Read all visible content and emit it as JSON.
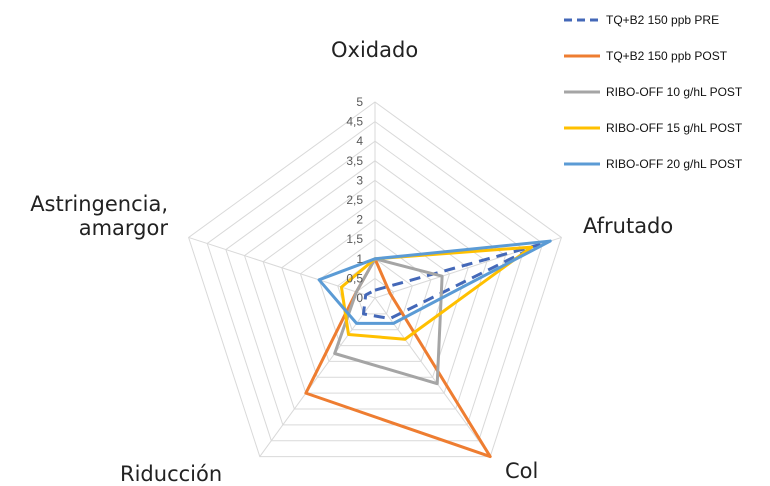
{
  "chart_data": {
    "type": "radar",
    "axes": [
      "Oxidado",
      "Afrutado",
      "Col",
      "Riducción",
      "Astringencia, amargor"
    ],
    "axis_label_lines": [
      [
        "Oxidado"
      ],
      [
        "Afrutado"
      ],
      [
        "Col"
      ],
      [
        "Riducción"
      ],
      [
        "Astringencia,",
        "amargor"
      ]
    ],
    "rlim": [
      0,
      5
    ],
    "ticks": [
      "0",
      "0,5",
      "1",
      "1,5",
      "2",
      "2,5",
      "3",
      "3,5",
      "4",
      "4,5",
      "5"
    ],
    "tick_values": [
      0,
      0.5,
      1,
      1.5,
      2,
      2.5,
      3,
      3.5,
      4,
      4.5,
      5
    ],
    "grid": true,
    "legend_position": "top-right",
    "series": [
      {
        "name": "TQ+B2 150 ppb PRE",
        "color": "#4468b8",
        "dash": true,
        "values": [
          0.2,
          4.4,
          0.65,
          0.5,
          0.25
        ]
      },
      {
        "name": "TQ+B2 150 ppb POST",
        "color": "#ee7d31",
        "dash": false,
        "values": [
          1.0,
          0.4,
          5.0,
          3.0,
          0.5
        ]
      },
      {
        "name": "RIBO-OFF 10 g/hL POST",
        "color": "#a5a5a5",
        "dash": false,
        "values": [
          1.0,
          1.8,
          2.7,
          1.75,
          0.5
        ]
      },
      {
        "name": "RIBO-OFF 15 g/hL POST",
        "color": "#ffc000",
        "dash": false,
        "values": [
          1.0,
          4.2,
          1.3,
          1.15,
          0.9
        ]
      },
      {
        "name": "RIBO-OFF 20 g/hL POST",
        "color": "#5b9bd5",
        "dash": false,
        "values": [
          1.0,
          4.7,
          0.8,
          0.8,
          1.5
        ]
      }
    ]
  }
}
